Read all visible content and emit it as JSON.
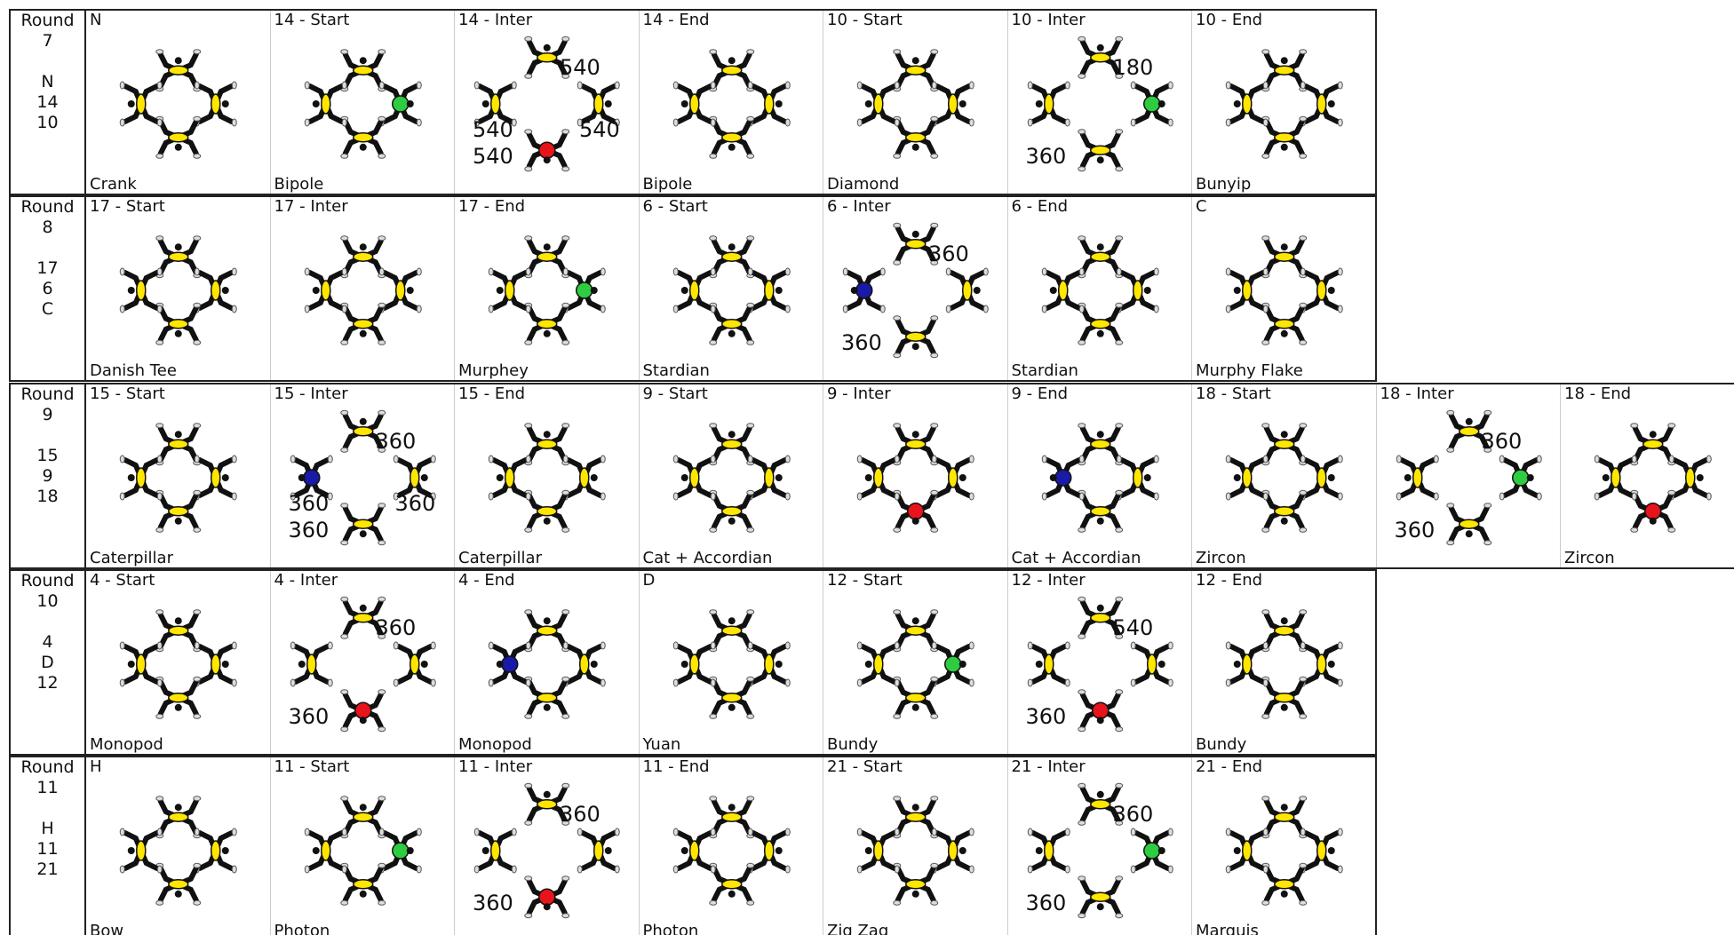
{
  "rounds": [
    {
      "label": "Round",
      "number": "7",
      "lines": [
        "N",
        "14",
        "10"
      ],
      "cells": [
        {
          "top": "N",
          "bottom": "Crank"
        },
        {
          "top": "14 - Start",
          "bottom": "Bipole"
        },
        {
          "top": "14 - Inter",
          "rotations": [
            "540",
            "540",
            "540",
            "540"
          ]
        },
        {
          "top": "14 - End",
          "bottom": "Bipole"
        },
        {
          "top": "10 - Start",
          "bottom": "Diamond"
        },
        {
          "top": "10 - Inter",
          "rotations": [
            "180",
            "360"
          ]
        },
        {
          "top": "10 - End",
          "bottom": "Bunyip"
        }
      ]
    },
    {
      "label": "Round",
      "number": "8",
      "lines": [
        "17",
        "6",
        "C"
      ],
      "cells": [
        {
          "top": "17 - Start",
          "bottom": "Danish Tee"
        },
        {
          "top": "17 - Inter"
        },
        {
          "top": "17 - End",
          "bottom": "Murphey"
        },
        {
          "top": "6 - Start",
          "bottom": "Stardian"
        },
        {
          "top": "6 - Inter",
          "rotations": [
            "360",
            "360"
          ]
        },
        {
          "top": "6 - End",
          "bottom": "Stardian"
        },
        {
          "top": "C",
          "bottom": "Murphy Flake"
        }
      ]
    },
    {
      "label": "Round",
      "number": "9",
      "lines": [
        "15",
        "9",
        "18"
      ],
      "cells": [
        {
          "top": "15 - Start",
          "bottom": "Caterpillar"
        },
        {
          "top": "15 - Inter",
          "rotations": [
            "360",
            "360",
            "360",
            "360"
          ]
        },
        {
          "top": "15 - End",
          "bottom": "Caterpillar"
        },
        {
          "top": "9 - Start",
          "bottom": "Cat + Accordian"
        },
        {
          "top": "9 - Inter"
        },
        {
          "top": "9 - End",
          "bottom": "Cat + Accordian"
        },
        {
          "top": "18 - Start",
          "bottom": "Zircon"
        },
        {
          "top": "18 - Inter",
          "rotations": [
            "360",
            "360"
          ]
        },
        {
          "top": "18 - End",
          "bottom": "Zircon"
        }
      ]
    },
    {
      "label": "Round",
      "number": "10",
      "lines": [
        "4",
        "D",
        "12"
      ],
      "cells": [
        {
          "top": "4 - Start",
          "bottom": "Monopod"
        },
        {
          "top": "4 - Inter",
          "rotations": [
            "360",
            "360"
          ]
        },
        {
          "top": "4 - End",
          "bottom": "Monopod"
        },
        {
          "top": "D",
          "bottom": "Yuan"
        },
        {
          "top": "12 - Start",
          "bottom": "Bundy"
        },
        {
          "top": "12 - Inter",
          "rotations": [
            "540",
            "360"
          ]
        },
        {
          "top": "12 - End",
          "bottom": "Bundy"
        }
      ]
    },
    {
      "label": "Round",
      "number": "11",
      "lines": [
        "H",
        "11",
        "21"
      ],
      "cells": [
        {
          "top": "H",
          "bottom": "Bow"
        },
        {
          "top": "11 - Start",
          "bottom": "Photon"
        },
        {
          "top": "11 - Inter",
          "rotations": [
            "360",
            "360"
          ]
        },
        {
          "top": "11 - End",
          "bottom": "Photon"
        },
        {
          "top": "21 - Start",
          "bottom": "Zig Zag"
        },
        {
          "top": "21 - Inter",
          "rotations": [
            "360",
            "360"
          ]
        },
        {
          "top": "21 - End",
          "bottom": "Marquis"
        }
      ]
    }
  ]
}
